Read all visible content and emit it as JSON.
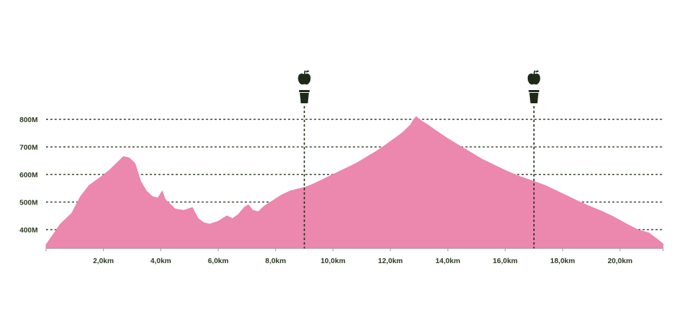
{
  "chart_data": {
    "type": "area",
    "title": "",
    "xlabel": "",
    "ylabel": "",
    "x_unit": "km",
    "y_unit": "m",
    "xlim": [
      0,
      21.5
    ],
    "ylim": [
      335,
      815
    ],
    "x_ticks": [
      {
        "value": 2,
        "label": "2,0km"
      },
      {
        "value": 4,
        "label": "4,0km"
      },
      {
        "value": 6,
        "label": "6,0km"
      },
      {
        "value": 8,
        "label": "8,0km"
      },
      {
        "value": 10,
        "label": "10,0km"
      },
      {
        "value": 12,
        "label": "12,0km"
      },
      {
        "value": 14,
        "label": "14,0km"
      },
      {
        "value": 16,
        "label": "16,0km"
      },
      {
        "value": 18,
        "label": "18,0km"
      },
      {
        "value": 20,
        "label": "20,0km"
      }
    ],
    "y_ticks": [
      {
        "value": 400,
        "label": "400M"
      },
      {
        "value": 500,
        "label": "500M"
      },
      {
        "value": 600,
        "label": "600M"
      },
      {
        "value": 700,
        "label": "700M"
      },
      {
        "value": 800,
        "label": "800M"
      }
    ],
    "grid": "horizontal dotted",
    "fill_color": "#ec87ae",
    "ink_color": "#2c3a23",
    "stations": [
      {
        "x": 9.0,
        "icons": [
          "apple-icon",
          "cup-icon"
        ]
      },
      {
        "x": 17.0,
        "icons": [
          "apple-icon",
          "cup-icon"
        ]
      }
    ],
    "series": [
      {
        "x": [
          0,
          0.2,
          0.5,
          0.9,
          1.2,
          1.5,
          1.9,
          2.2,
          2.5,
          2.7,
          2.9,
          3.1,
          3.3,
          3.5,
          3.7,
          3.9,
          4.05,
          4.15,
          4.3,
          4.5,
          4.8,
          5.1,
          5.3,
          5.5,
          5.7,
          6.0,
          6.3,
          6.5,
          6.7,
          6.9,
          7.05,
          7.2,
          7.4,
          7.6,
          7.9,
          8.2,
          8.5,
          8.8,
          9.0,
          9.3,
          9.6,
          10.0,
          10.4,
          10.8,
          11.2,
          11.6,
          12.0,
          12.4,
          12.7,
          12.8,
          12.9,
          13.0,
          13.3,
          13.6,
          14.0,
          14.4,
          14.8,
          15.2,
          15.6,
          16.0,
          16.4,
          16.8,
          17.0,
          17.4,
          17.8,
          18.2,
          18.6,
          19.0,
          19.4,
          19.8,
          20.2,
          20.6,
          21.0,
          21.3,
          21.5
        ],
        "y": [
          345,
          375,
          420,
          460,
          520,
          560,
          590,
          615,
          645,
          665,
          660,
          640,
          575,
          540,
          520,
          515,
          540,
          510,
          495,
          475,
          470,
          480,
          440,
          425,
          420,
          430,
          450,
          440,
          455,
          480,
          490,
          470,
          465,
          485,
          505,
          525,
          540,
          548,
          553,
          565,
          580,
          600,
          620,
          640,
          665,
          690,
          720,
          750,
          780,
          798,
          810,
          800,
          780,
          758,
          730,
          705,
          680,
          655,
          635,
          615,
          597,
          582,
          575,
          560,
          540,
          520,
          500,
          482,
          465,
          445,
          422,
          400,
          388,
          365,
          348
        ]
      }
    ]
  }
}
